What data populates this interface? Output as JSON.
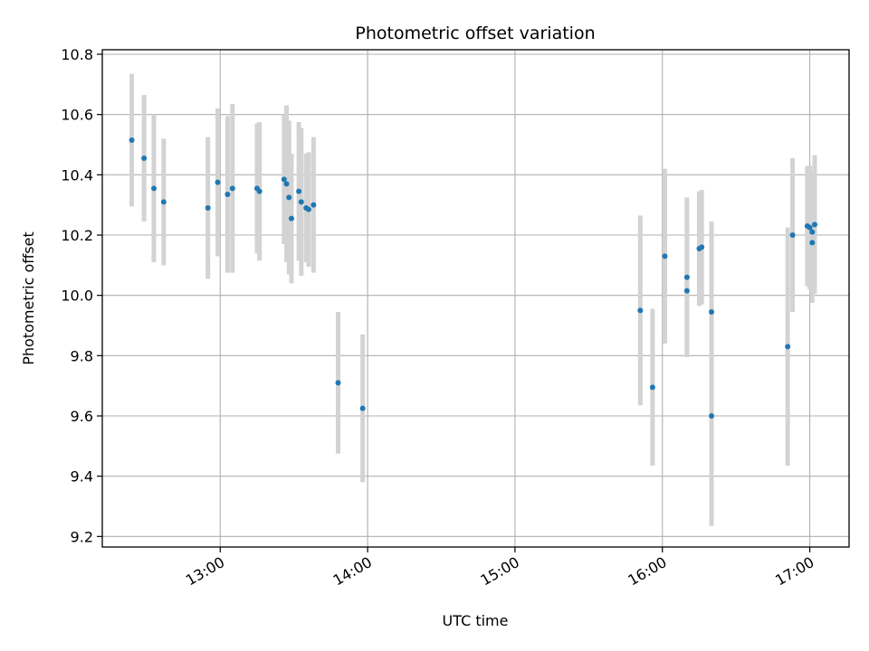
{
  "chart_data": {
    "type": "scatter",
    "title": "Photometric offset variation",
    "xlabel": "UTC time",
    "ylabel": "Photometric offset",
    "x_ticks": [
      "13:00",
      "14:00",
      "15:00",
      "16:00",
      "17:00"
    ],
    "y_ticks": [
      "9.2",
      "9.4",
      "9.6",
      "9.8",
      "10.0",
      "10.2",
      "10.4",
      "10.6",
      "10.8"
    ],
    "xlim": [
      "12:12",
      "17:16"
    ],
    "ylim": [
      9.165,
      10.815
    ],
    "grid": true,
    "colors": {
      "point": "#1f77b4",
      "errorbar": "#d3d3d3",
      "grid": "#b0b0b0"
    },
    "series": [
      {
        "points": [
          {
            "x": "12:24",
            "y": 10.515,
            "err": 0.22
          },
          {
            "x": "12:29",
            "y": 10.455,
            "err": 0.21
          },
          {
            "x": "12:33",
            "y": 10.355,
            "err": 0.245
          },
          {
            "x": "12:37",
            "y": 10.31,
            "err": 0.21
          },
          {
            "x": "12:55",
            "y": 10.29,
            "err": 0.235
          },
          {
            "x": "12:59",
            "y": 10.375,
            "err": 0.245
          },
          {
            "x": "13:03",
            "y": 10.335,
            "err": 0.26
          },
          {
            "x": "13:05",
            "y": 10.355,
            "err": 0.28
          },
          {
            "x": "13:15",
            "y": 10.355,
            "err": 0.215
          },
          {
            "x": "13:16",
            "y": 10.345,
            "err": 0.23
          },
          {
            "x": "13:26",
            "y": 10.385,
            "err": 0.215
          },
          {
            "x": "13:27",
            "y": 10.37,
            "err": 0.26
          },
          {
            "x": "13:28",
            "y": 10.325,
            "err": 0.255
          },
          {
            "x": "13:29",
            "y": 10.255,
            "err": 0.215
          },
          {
            "x": "13:32",
            "y": 10.345,
            "err": 0.23
          },
          {
            "x": "13:33",
            "y": 10.31,
            "err": 0.245
          },
          {
            "x": "13:35",
            "y": 10.29,
            "err": 0.18
          },
          {
            "x": "13:36",
            "y": 10.285,
            "err": 0.19
          },
          {
            "x": "13:38",
            "y": 10.3,
            "err": 0.225
          },
          {
            "x": "13:48",
            "y": 9.71,
            "err": 0.235
          },
          {
            "x": "13:58",
            "y": 9.625,
            "err": 0.245
          },
          {
            "x": "15:51",
            "y": 9.95,
            "err": 0.315
          },
          {
            "x": "15:56",
            "y": 9.695,
            "err": 0.26
          },
          {
            "x": "16:01",
            "y": 10.13,
            "err": 0.29
          },
          {
            "x": "16:10",
            "y": 10.06,
            "err": 0.265
          },
          {
            "x": "16:10",
            "y": 10.015,
            "err": 0.22
          },
          {
            "x": "16:15",
            "y": 10.155,
            "err": 0.19
          },
          {
            "x": "16:16",
            "y": 10.16,
            "err": 0.19
          },
          {
            "x": "16:20",
            "y": 9.945,
            "err": 0.3
          },
          {
            "x": "16:20",
            "y": 9.6,
            "err": 0.365
          },
          {
            "x": "16:51",
            "y": 9.83,
            "err": 0.395
          },
          {
            "x": "16:53",
            "y": 10.2,
            "err": 0.255
          },
          {
            "x": "16:59",
            "y": 10.23,
            "err": 0.2
          },
          {
            "x": "17:00",
            "y": 10.225,
            "err": 0.205
          },
          {
            "x": "17:01",
            "y": 10.175,
            "err": 0.2
          },
          {
            "x": "17:01",
            "y": 10.21,
            "err": 0.2
          },
          {
            "x": "17:02",
            "y": 10.235,
            "err": 0.23
          }
        ]
      }
    ]
  }
}
